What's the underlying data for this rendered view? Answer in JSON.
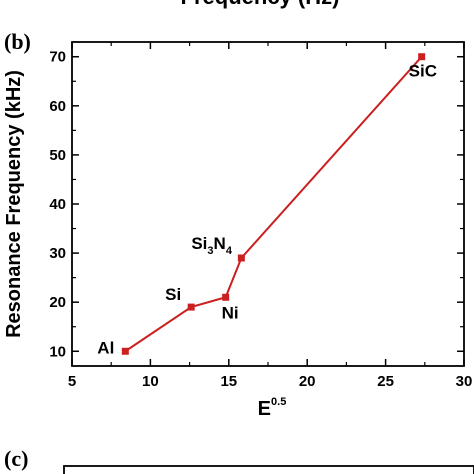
{
  "top_title": "Frequency (Hz)",
  "panel_b_label": "(b)",
  "panel_c_label": "(c)",
  "chart_data": {
    "type": "line",
    "xlabel_base": "E",
    "xlabel_exp": "0.5",
    "ylabel": "Resonance Frequency (kHz)",
    "xlim": [
      5,
      30
    ],
    "ylim": [
      7,
      73
    ],
    "xticks": [
      5,
      10,
      15,
      20,
      25,
      30
    ],
    "yticks": [
      10,
      20,
      30,
      40,
      50,
      60,
      70
    ],
    "series_color": "#cc1f1f",
    "points": [
      {
        "label": "Al",
        "x": 8.4,
        "y": 10
      },
      {
        "label": "Si",
        "x": 12.6,
        "y": 19
      },
      {
        "label": "Ni",
        "x": 14.8,
        "y": 21
      },
      {
        "label_base": "Si",
        "label_sub1": "3",
        "label_mid": "N",
        "label_sub2": "4",
        "x": 15.8,
        "y": 29
      },
      {
        "label": "SiC",
        "x": 27.3,
        "y": 70
      }
    ]
  }
}
